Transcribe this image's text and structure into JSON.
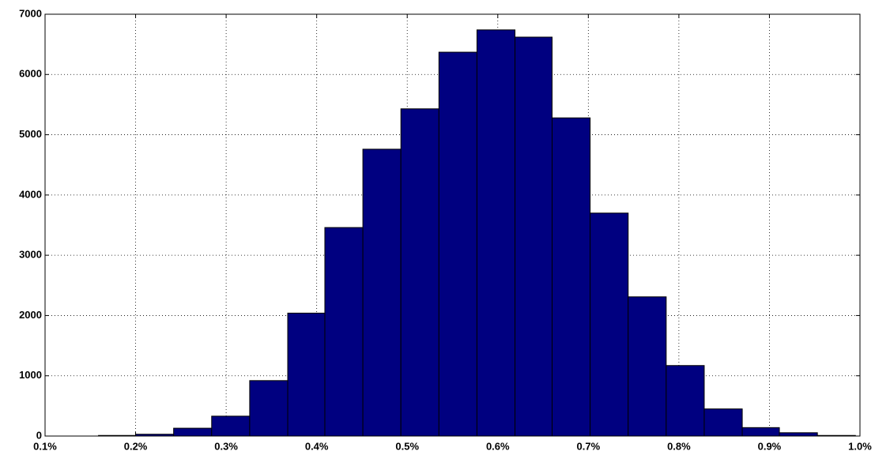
{
  "chart_data": {
    "type": "histogram",
    "bins": [
      0.159,
      0.2,
      0.242,
      0.284,
      0.326,
      0.368,
      0.409,
      0.451,
      0.493,
      0.535,
      0.577,
      0.619,
      0.66,
      0.702,
      0.744,
      0.786,
      0.828,
      0.87,
      0.911,
      0.953,
      0.995
    ],
    "values": [
      10,
      30,
      130,
      330,
      920,
      2040,
      3460,
      4760,
      5430,
      6370,
      6740,
      6620,
      5280,
      3700,
      2310,
      1170,
      450,
      140,
      55,
      10
    ],
    "color": "#000080",
    "xlim": [
      0.1,
      1.0
    ],
    "xticks": [
      {
        "value": 0.1,
        "label": "0.1%"
      },
      {
        "value": 0.2,
        "label": "0.2%"
      },
      {
        "value": 0.3,
        "label": "0.3%"
      },
      {
        "value": 0.4,
        "label": "0.4%"
      },
      {
        "value": 0.5,
        "label": "0.5%"
      },
      {
        "value": 0.6,
        "label": "0.6%"
      },
      {
        "value": 0.7,
        "label": "0.7%"
      },
      {
        "value": 0.8,
        "label": "0.8%"
      },
      {
        "value": 0.9,
        "label": "0.9%"
      },
      {
        "value": 1.0,
        "label": "1.0%"
      }
    ],
    "ylim": [
      0,
      7000
    ],
    "yticks": [
      0,
      1000,
      2000,
      3000,
      4000,
      5000,
      6000,
      7000
    ],
    "grid": true
  }
}
